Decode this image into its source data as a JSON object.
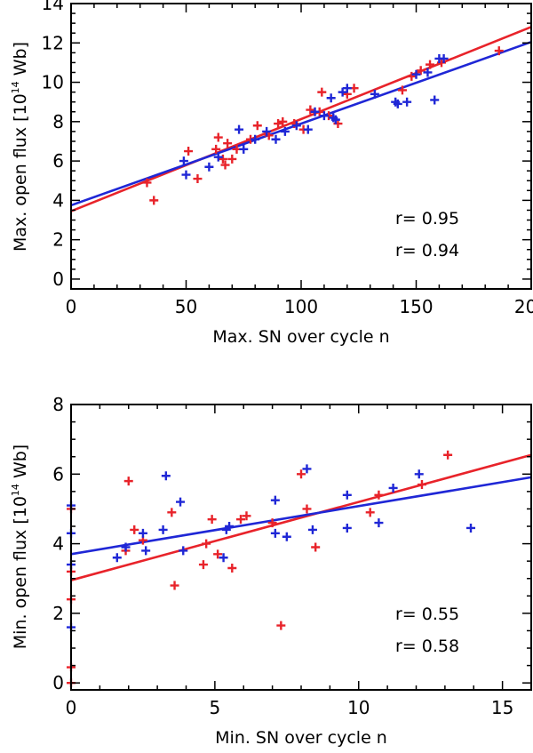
{
  "colors": {
    "red": "#e8232a",
    "blue": "#1f27d6",
    "axis": "#000000"
  },
  "chart_data": [
    {
      "type": "scatter",
      "xlabel": "Max. SN over cycle n",
      "ylabel_main": "Max. open flux [10",
      "ylabel_exp": "14",
      "ylabel_unit": " Wb]",
      "xlim": [
        0,
        200
      ],
      "ylim": [
        -0.5,
        14
      ],
      "xticks": [
        0,
        50,
        100,
        150,
        200
      ],
      "xtick_labels": [
        "0",
        "50",
        "100",
        "150",
        "200"
      ],
      "yticks": [
        0,
        2,
        4,
        6,
        8,
        10,
        12,
        14
      ],
      "ytick_labels": [
        "0",
        "2",
        "4",
        "6",
        "8",
        "10",
        "12",
        "14"
      ],
      "legend": [
        {
          "text": "r= 0.95",
          "color": "#e8232a"
        },
        {
          "text": "r= 0.94",
          "color": "#1f27d6"
        }
      ],
      "series": [
        {
          "name": "red",
          "color": "#e8232a",
          "fit": {
            "intercept": 3.45,
            "slope": 0.0468
          },
          "points": [
            [
              33,
              4.9
            ],
            [
              36,
              4.0
            ],
            [
              51,
              6.5
            ],
            [
              55,
              5.1
            ],
            [
              63,
              6.6
            ],
            [
              64,
              7.2
            ],
            [
              66,
              6.1
            ],
            [
              67,
              5.8
            ],
            [
              68,
              6.9
            ],
            [
              70,
              6.1
            ],
            [
              72,
              6.6
            ],
            [
              78,
              7.1
            ],
            [
              81,
              7.8
            ],
            [
              86,
              7.3
            ],
            [
              90,
              7.9
            ],
            [
              92,
              8.0
            ],
            [
              97,
              7.9
            ],
            [
              101,
              7.6
            ],
            [
              104,
              8.6
            ],
            [
              108,
              8.5
            ],
            [
              109,
              9.5
            ],
            [
              112,
              8.3
            ],
            [
              116,
              7.9
            ],
            [
              120,
              9.4
            ],
            [
              123,
              9.7
            ],
            [
              144,
              9.6
            ],
            [
              148,
              10.3
            ],
            [
              152,
              10.6
            ],
            [
              156,
              10.9
            ],
            [
              161,
              11.0
            ],
            [
              186,
              11.6
            ]
          ]
        },
        {
          "name": "blue",
          "color": "#1f27d6",
          "fit": {
            "intercept": 3.75,
            "slope": 0.0415
          },
          "points": [
            [
              49,
              6.0
            ],
            [
              50,
              5.3
            ],
            [
              60,
              5.7
            ],
            [
              64,
              6.2
            ],
            [
              73,
              7.6
            ],
            [
              75,
              6.6
            ],
            [
              80,
              7.1
            ],
            [
              85,
              7.5
            ],
            [
              89,
              7.1
            ],
            [
              93,
              7.5
            ],
            [
              98,
              7.8
            ],
            [
              103,
              7.6
            ],
            [
              106,
              8.5
            ],
            [
              110,
              8.3
            ],
            [
              113,
              9.2
            ],
            [
              114,
              8.2
            ],
            [
              115,
              8.1
            ],
            [
              118,
              9.5
            ],
            [
              120,
              9.7
            ],
            [
              132,
              9.4
            ],
            [
              141,
              9.0
            ],
            [
              142,
              8.9
            ],
            [
              146,
              9.0
            ],
            [
              150,
              10.4
            ],
            [
              155,
              10.5
            ],
            [
              158,
              9.1
            ],
            [
              160,
              11.2
            ],
            [
              162,
              11.2
            ]
          ]
        }
      ]
    },
    {
      "type": "scatter",
      "xlabel": "Min. SN over cycle n",
      "ylabel_main": "Min. open flux [10",
      "ylabel_exp": "14",
      "ylabel_unit": " Wb]",
      "xlim": [
        0,
        16
      ],
      "ylim": [
        -0.2,
        8
      ],
      "xticks": [
        0,
        5,
        10,
        15
      ],
      "xtick_labels": [
        "0",
        "5",
        "10",
        "15"
      ],
      "yticks": [
        0,
        2,
        4,
        6,
        8
      ],
      "ytick_labels": [
        "0",
        "2",
        "4",
        "6",
        "8"
      ],
      "legend": [
        {
          "text": "r= 0.55",
          "color": "#e8232a"
        },
        {
          "text": "r= 0.58",
          "color": "#1f27d6"
        }
      ],
      "series": [
        {
          "name": "red",
          "color": "#e8232a",
          "fit": {
            "intercept": 2.95,
            "slope": 0.225
          },
          "points": [
            [
              0,
              0.0
            ],
            [
              0,
              0.45
            ],
            [
              0,
              2.4
            ],
            [
              0,
              3.2
            ],
            [
              0,
              5.0
            ],
            [
              1.9,
              3.8
            ],
            [
              2.0,
              5.8
            ],
            [
              2.2,
              4.4
            ],
            [
              2.5,
              4.1
            ],
            [
              3.5,
              4.9
            ],
            [
              3.6,
              2.8
            ],
            [
              4.6,
              3.4
            ],
            [
              4.7,
              4.0
            ],
            [
              4.9,
              4.7
            ],
            [
              5.1,
              3.7
            ],
            [
              5.6,
              3.3
            ],
            [
              5.9,
              4.7
            ],
            [
              6.1,
              4.8
            ],
            [
              7.0,
              4.6
            ],
            [
              7.3,
              1.65
            ],
            [
              8.0,
              6.0
            ],
            [
              8.2,
              5.0
            ],
            [
              8.5,
              3.9
            ],
            [
              10.4,
              4.9
            ],
            [
              10.7,
              5.4
            ],
            [
              12.2,
              5.7
            ],
            [
              13.1,
              6.55
            ]
          ]
        },
        {
          "name": "blue",
          "color": "#1f27d6",
          "fit": {
            "intercept": 3.7,
            "slope": 0.138
          },
          "points": [
            [
              0,
              1.6
            ],
            [
              0,
              3.4
            ],
            [
              0,
              4.3
            ],
            [
              0,
              5.1
            ],
            [
              1.6,
              3.6
            ],
            [
              1.9,
              3.9
            ],
            [
              2.5,
              4.3
            ],
            [
              2.6,
              3.8
            ],
            [
              3.2,
              4.4
            ],
            [
              3.3,
              5.95
            ],
            [
              3.8,
              5.2
            ],
            [
              3.9,
              3.8
            ],
            [
              5.3,
              3.6
            ],
            [
              5.4,
              4.4
            ],
            [
              5.5,
              4.5
            ],
            [
              7.1,
              4.3
            ],
            [
              7.1,
              5.25
            ],
            [
              7.5,
              4.2
            ],
            [
              8.2,
              6.15
            ],
            [
              8.4,
              4.4
            ],
            [
              9.6,
              5.4
            ],
            [
              9.6,
              4.45
            ],
            [
              10.7,
              4.6
            ],
            [
              11.2,
              5.6
            ],
            [
              12.1,
              6.0
            ],
            [
              13.9,
              4.45
            ]
          ]
        }
      ]
    }
  ]
}
